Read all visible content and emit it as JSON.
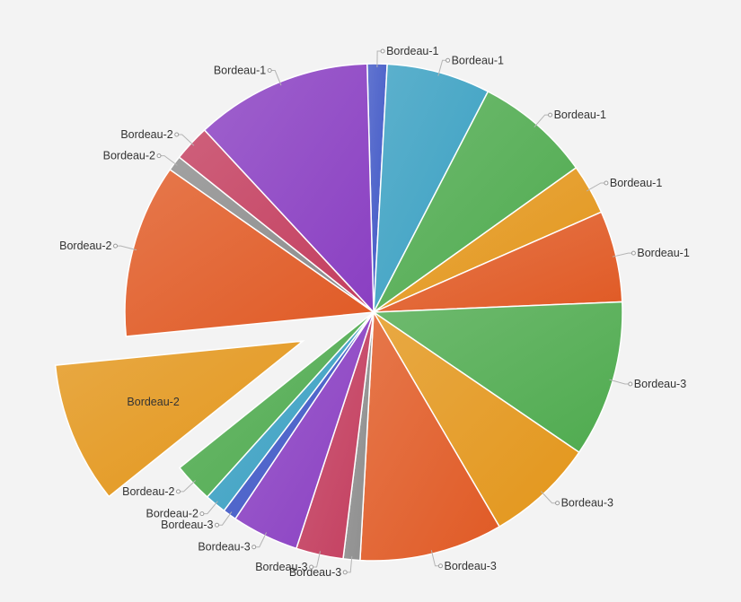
{
  "chart_data": {
    "type": "pie",
    "exploded_slice_index": 14,
    "series": [
      {
        "label": "Bordeau-1",
        "value": 1.3,
        "color": "#3f57c6"
      },
      {
        "label": "Bordeau-1",
        "value": 6.8,
        "color": "#3aa0c2"
      },
      {
        "label": "Bordeau-1",
        "value": 7.6,
        "color": "#4fab4f"
      },
      {
        "label": "Bordeau-1",
        "value": 3.3,
        "color": "#e3961b"
      },
      {
        "label": "Bordeau-1",
        "value": 6.0,
        "color": "#e05a25"
      },
      {
        "label": "Bordeau-3",
        "value": 10.3,
        "color": "#4fab4f"
      },
      {
        "label": "Bordeau-3",
        "value": 7.1,
        "color": "#e3961b"
      },
      {
        "label": "Bordeau-3",
        "value": 9.4,
        "color": "#e05a25"
      },
      {
        "label": "Bordeau-3",
        "value": 1.1,
        "color": "#8c8c8c"
      },
      {
        "label": "Bordeau-3",
        "value": 3.1,
        "color": "#c33d5e"
      },
      {
        "label": "Bordeau-3",
        "value": 4.4,
        "color": "#8a3fc2"
      },
      {
        "label": "Bordeau-3",
        "value": 0.9,
        "color": "#3f57c6"
      },
      {
        "label": "Bordeau-2",
        "value": 1.4,
        "color": "#3aa0c2"
      },
      {
        "label": "Bordeau-2",
        "value": 2.6,
        "color": "#4fab4f"
      },
      {
        "label": "Bordeau-2",
        "value": 9.3,
        "color": "#e3961b"
      },
      {
        "label": "Bordeau-2",
        "value": 11.4,
        "color": "#e05a25"
      },
      {
        "label": "Bordeau-2",
        "value": 1.0,
        "color": "#8c8c8c"
      },
      {
        "label": "Bordeau-2",
        "value": 2.4,
        "color": "#c33d5e"
      },
      {
        "label": "Bordeau-1",
        "value": 11.6,
        "color": "#8a3fc2"
      }
    ]
  }
}
